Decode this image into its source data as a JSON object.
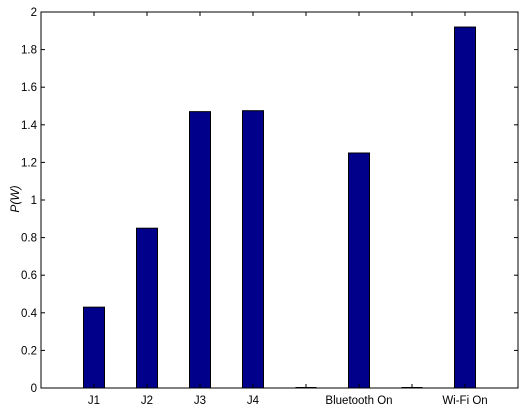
{
  "chart_data": {
    "type": "bar",
    "categories": [
      "J1",
      "J2",
      "J3",
      "J4",
      "",
      "Bluetooth On",
      "",
      "Wi-Fi On"
    ],
    "values": [
      0.43,
      0.85,
      1.47,
      1.475,
      0,
      1.25,
      0,
      1.92
    ],
    "ylabel": "P(W)",
    "xlabel": "",
    "title": "",
    "ylim": [
      0,
      2
    ],
    "yticks": [
      "0",
      "0.2",
      "0.4",
      "0.6",
      "0.8",
      "1",
      "1.2",
      "1.4",
      "1.6",
      "1.8",
      "2"
    ],
    "bar_color": "#00008B",
    "grid": false
  }
}
